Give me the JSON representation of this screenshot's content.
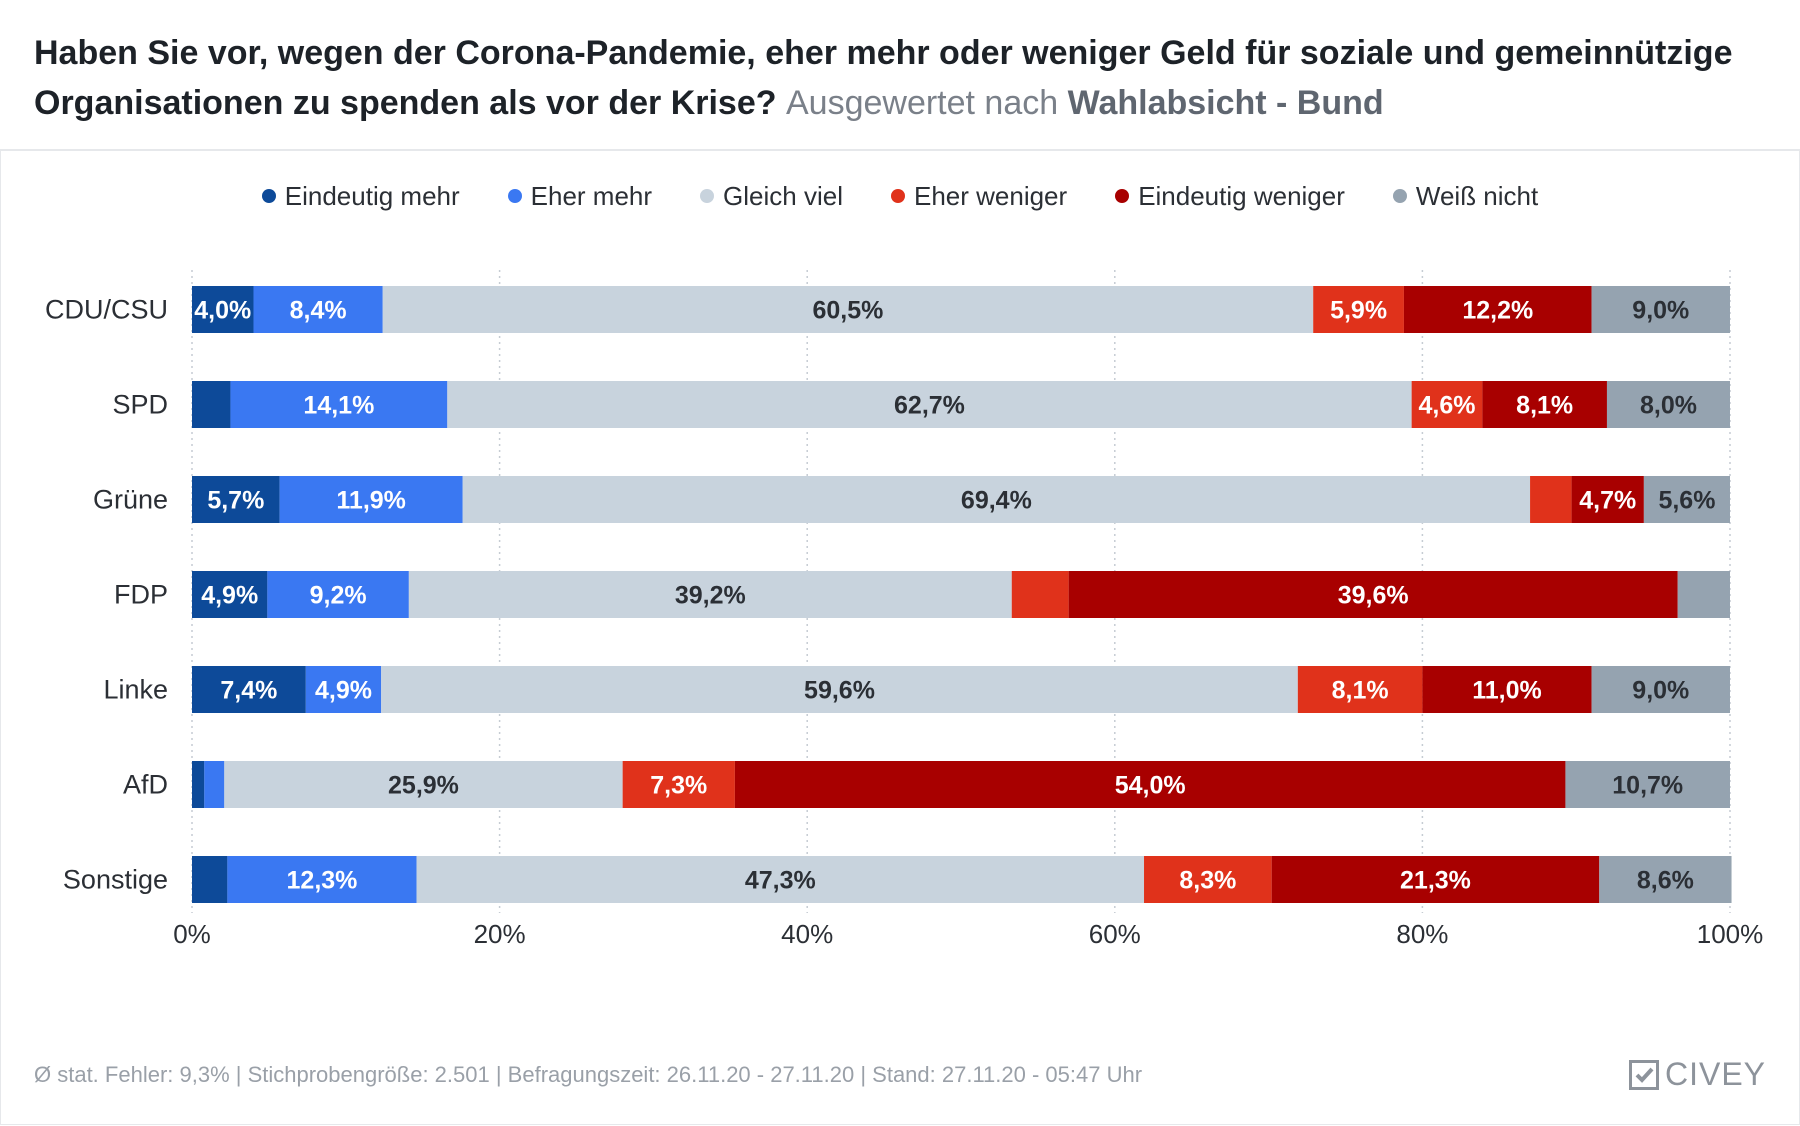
{
  "header": {
    "question": "Haben Sie vor, wegen der Corona-Pandemie, eher mehr oder weniger Geld für soziale und gemeinnützige Organisationen zu spenden als vor der Krise?",
    "subtitle_prefix": "Ausgewertet nach",
    "subtitle_strong": "Wahlabsicht - Bund"
  },
  "colors": {
    "Eindeutig mehr": "#0d4a99",
    "Eher mehr": "#3a78f2",
    "Gleich viel": "#c8d3dd",
    "Eher weniger": "#e0321b",
    "Eindeutig weniger": "#a80000",
    "Weiß nicht": "#95a3b0"
  },
  "chart_data": {
    "type": "bar",
    "orientation": "horizontal",
    "stacked": true,
    "categories": [
      "CDU/CSU",
      "SPD",
      "Grüne",
      "FDP",
      "Linke",
      "AfD",
      "Sonstige"
    ],
    "series": [
      {
        "name": "Eindeutig mehr",
        "values": [
          4.0,
          2.5,
          5.7,
          4.9,
          7.4,
          0.8,
          2.3
        ],
        "labels": [
          "4,0%",
          "",
          "5,7%",
          "4,9%",
          "7,4%",
          "",
          ""
        ]
      },
      {
        "name": "Eher mehr",
        "values": [
          8.4,
          14.1,
          11.9,
          9.2,
          4.9,
          1.3,
          12.3
        ],
        "labels": [
          "8,4%",
          "14,1%",
          "11,9%",
          "9,2%",
          "4,9%",
          "",
          "12,3%"
        ]
      },
      {
        "name": "Gleich viel",
        "values": [
          60.5,
          62.7,
          69.4,
          39.2,
          59.6,
          25.9,
          47.3
        ],
        "labels": [
          "60,5%",
          "62,7%",
          "69,4%",
          "39,2%",
          "59,6%",
          "25,9%",
          "47,3%"
        ]
      },
      {
        "name": "Eher weniger",
        "values": [
          5.9,
          4.6,
          2.7,
          3.7,
          8.1,
          7.3,
          8.3
        ],
        "labels": [
          "5,9%",
          "4,6%",
          "",
          "",
          "8,1%",
          "7,3%",
          "8,3%"
        ]
      },
      {
        "name": "Eindeutig weniger",
        "values": [
          12.2,
          8.1,
          4.7,
          39.6,
          11.0,
          54.0,
          21.3
        ],
        "labels": [
          "12,2%",
          "8,1%",
          "4,7%",
          "39,6%",
          "11,0%",
          "54,0%",
          "21,3%"
        ]
      },
      {
        "name": "Weiß nicht",
        "values": [
          9.0,
          8.0,
          5.6,
          3.4,
          9.0,
          10.7,
          8.6
        ],
        "labels": [
          "9,0%",
          "8,0%",
          "5,6%",
          "",
          "9,0%",
          "10,7%",
          "8,6%"
        ]
      }
    ],
    "xlim": [
      0,
      100
    ],
    "xticks": [
      "0%",
      "20%",
      "40%",
      "60%",
      "80%",
      "100%"
    ],
    "grid": "vertical dotted",
    "legend": "top"
  },
  "footer": {
    "text": "Ø stat. Fehler: 9,3% | Stichprobengröße: 2.501 | Befragungszeit: 26.11.20 - 27.11.20 | Stand: 27.11.20 - 05:47 Uhr"
  },
  "logo": {
    "text": "CIVEY",
    "icon": "civey-logo-icon"
  }
}
